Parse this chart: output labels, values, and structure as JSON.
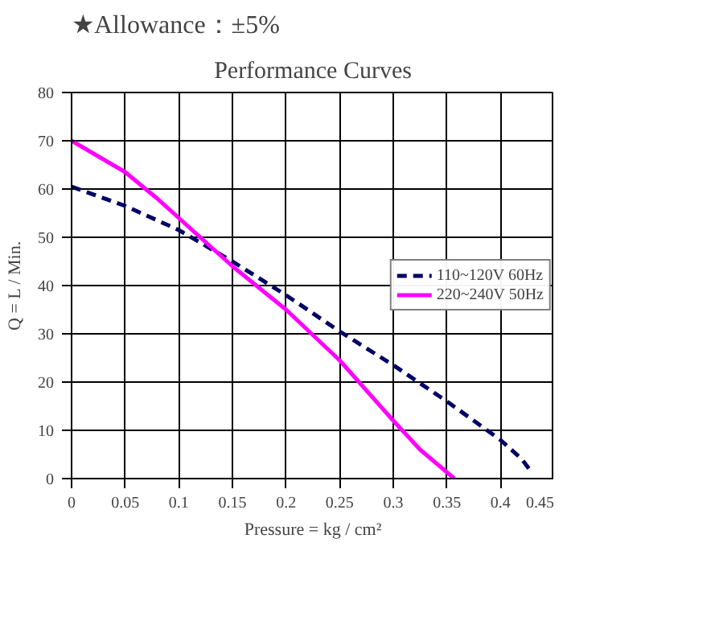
{
  "chart_data": {
    "type": "line",
    "title": "Performance Curves",
    "annotations": [
      "★Allowance：±5%"
    ],
    "xlabel": "Pressure = kg / cm²",
    "ylabel": "Q = L / Min.",
    "xlim": [
      0,
      0.45
    ],
    "xticks": [
      0,
      0.05,
      0.1,
      0.15,
      0.2,
      0.25,
      0.3,
      0.35,
      0.4,
      0.45
    ],
    "ylim": [
      0,
      80
    ],
    "yticks": [
      0,
      10,
      20,
      30,
      40,
      50,
      60,
      70,
      80
    ],
    "grid": true,
    "legend": "right",
    "series": [
      {
        "name": "110~120V 60Hz",
        "color": "#000066",
        "line_style": "dashed",
        "x": [
          0,
          0.05,
          0.1,
          0.15,
          0.2,
          0.25,
          0.3,
          0.35,
          0.4,
          0.42,
          0.43
        ],
        "values": [
          60.5,
          56.5,
          51.5,
          45,
          38,
          30.5,
          23.5,
          16,
          8,
          4,
          1
        ]
      },
      {
        "name": "220~240V 50Hz",
        "color": "#ff00ff",
        "line_style": "solid",
        "x": [
          0,
          0.05,
          0.08,
          0.1,
          0.15,
          0.2,
          0.25,
          0.3,
          0.325,
          0.357
        ],
        "values": [
          70,
          63.5,
          58,
          54,
          44,
          35,
          24.5,
          12,
          6,
          0
        ]
      }
    ]
  }
}
